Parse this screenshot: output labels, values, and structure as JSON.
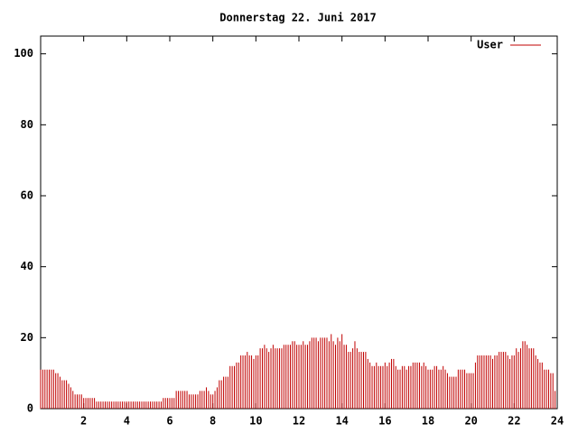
{
  "chart_data": {
    "type": "impulses",
    "title": "Donnerstag 22. Juni 2017",
    "xlim": [
      0,
      24
    ],
    "ylim": [
      0,
      105
    ],
    "xticks": [
      2,
      4,
      6,
      8,
      10,
      12,
      14,
      16,
      18,
      20,
      22,
      24
    ],
    "yticks": [
      0,
      20,
      40,
      60,
      80,
      100
    ],
    "legend": "top-right",
    "x": [
      0,
      0.1,
      0.2,
      0.3,
      0.4,
      0.5,
      0.6,
      0.7,
      0.8,
      0.9,
      1,
      1.1,
      1.2,
      1.3,
      1.4,
      1.5,
      1.6,
      1.7,
      1.8,
      1.9,
      2,
      2.1,
      2.2,
      2.3,
      2.4,
      2.5,
      2.6,
      2.7,
      2.8,
      2.9,
      3,
      3.1,
      3.2,
      3.3,
      3.4,
      3.5,
      3.6,
      3.7,
      3.8,
      3.9,
      4,
      4.1,
      4.2,
      4.3,
      4.4,
      4.5,
      4.6,
      4.7,
      4.8,
      4.9,
      5,
      5.1,
      5.2,
      5.3,
      5.4,
      5.5,
      5.6,
      5.7,
      5.8,
      5.9,
      6,
      6.1,
      6.2,
      6.3,
      6.4,
      6.5,
      6.6,
      6.7,
      6.8,
      6.9,
      7,
      7.1,
      7.2,
      7.3,
      7.4,
      7.5,
      7.6,
      7.7,
      7.8,
      7.9,
      8,
      8.1,
      8.2,
      8.3,
      8.4,
      8.5,
      8.6,
      8.7,
      8.8,
      8.9,
      9,
      9.1,
      9.2,
      9.3,
      9.4,
      9.5,
      9.6,
      9.7,
      9.8,
      9.9,
      10,
      10.1,
      10.2,
      10.3,
      10.4,
      10.5,
      10.6,
      10.7,
      10.8,
      10.9,
      11,
      11.1,
      11.2,
      11.3,
      11.4,
      11.5,
      11.6,
      11.7,
      11.8,
      11.9,
      12,
      12.1,
      12.2,
      12.3,
      12.4,
      12.5,
      12.6,
      12.7,
      12.8,
      12.9,
      13,
      13.1,
      13.2,
      13.3,
      13.4,
      13.5,
      13.6,
      13.7,
      13.8,
      13.9,
      14,
      14.1,
      14.2,
      14.3,
      14.4,
      14.5,
      14.6,
      14.7,
      14.8,
      14.9,
      15,
      15.1,
      15.2,
      15.3,
      15.4,
      15.5,
      15.6,
      15.7,
      15.8,
      15.9,
      16,
      16.1,
      16.2,
      16.3,
      16.4,
      16.5,
      16.6,
      16.7,
      16.8,
      16.9,
      17,
      17.1,
      17.2,
      17.3,
      17.4,
      17.5,
      17.6,
      17.7,
      17.8,
      17.9,
      18,
      18.1,
      18.2,
      18.3,
      18.4,
      18.5,
      18.6,
      18.7,
      18.8,
      18.9,
      19,
      19.1,
      19.2,
      19.3,
      19.4,
      19.5,
      19.6,
      19.7,
      19.8,
      19.9,
      20,
      20.1,
      20.2,
      20.3,
      20.4,
      20.5,
      20.6,
      20.7,
      20.8,
      20.9,
      21,
      21.1,
      21.2,
      21.3,
      21.4,
      21.5,
      21.6,
      21.7,
      21.8,
      21.9,
      22,
      22.1,
      22.2,
      22.3,
      22.4,
      22.5,
      22.6,
      22.7,
      22.8,
      22.9,
      23,
      23.1,
      23.2,
      23.3,
      23.4,
      23.5,
      23.6,
      23.7,
      23.8,
      23.9
    ],
    "series": [
      {
        "name": "User",
        "color": "#c00000",
        "values": [
          11,
          11,
          11,
          11,
          11,
          11,
          11,
          10,
          10,
          9,
          8,
          8,
          8,
          7,
          6,
          5,
          4,
          4,
          4,
          4,
          3,
          3,
          3,
          3,
          3,
          3,
          2,
          2,
          2,
          2,
          2,
          2,
          2,
          2,
          2,
          2,
          2,
          2,
          2,
          2,
          2,
          2,
          2,
          2,
          2,
          2,
          2,
          2,
          2,
          2,
          2,
          2,
          2,
          2,
          2,
          2,
          2,
          3,
          3,
          3,
          3,
          3,
          3,
          5,
          5,
          5,
          5,
          5,
          5,
          4,
          4,
          4,
          4,
          4,
          5,
          5,
          5,
          6,
          5,
          4,
          4,
          5,
          6,
          8,
          8,
          9,
          9,
          9,
          12,
          12,
          12,
          13,
          13,
          15,
          15,
          15,
          16,
          15,
          15,
          14,
          15,
          15,
          17,
          17,
          18,
          17,
          16,
          17,
          18,
          17,
          17,
          17,
          17,
          18,
          18,
          18,
          18,
          19,
          19,
          18,
          18,
          18,
          19,
          18,
          18,
          19,
          20,
          20,
          20,
          19,
          20,
          20,
          20,
          20,
          19,
          21,
          19,
          18,
          20,
          19,
          21,
          18,
          18,
          16,
          16,
          17,
          19,
          17,
          16,
          16,
          16,
          16,
          14,
          13,
          12,
          12,
          13,
          12,
          12,
          12,
          13,
          12,
          13,
          14,
          14,
          12,
          11,
          11,
          12,
          12,
          11,
          12,
          12,
          13,
          13,
          13,
          13,
          12,
          13,
          12,
          11,
          11,
          11,
          12,
          12,
          11,
          11,
          12,
          11,
          10,
          9,
          9,
          9,
          9,
          11,
          11,
          11,
          11,
          10,
          10,
          10,
          10,
          13,
          15,
          15,
          15,
          15,
          15,
          15,
          15,
          14,
          15,
          15,
          16,
          16,
          16,
          16,
          15,
          14,
          15,
          15,
          17,
          16,
          17,
          19,
          19,
          18,
          17,
          17,
          17,
          15,
          14,
          13,
          13,
          11,
          11,
          11,
          10,
          10,
          5
        ]
      }
    ]
  }
}
